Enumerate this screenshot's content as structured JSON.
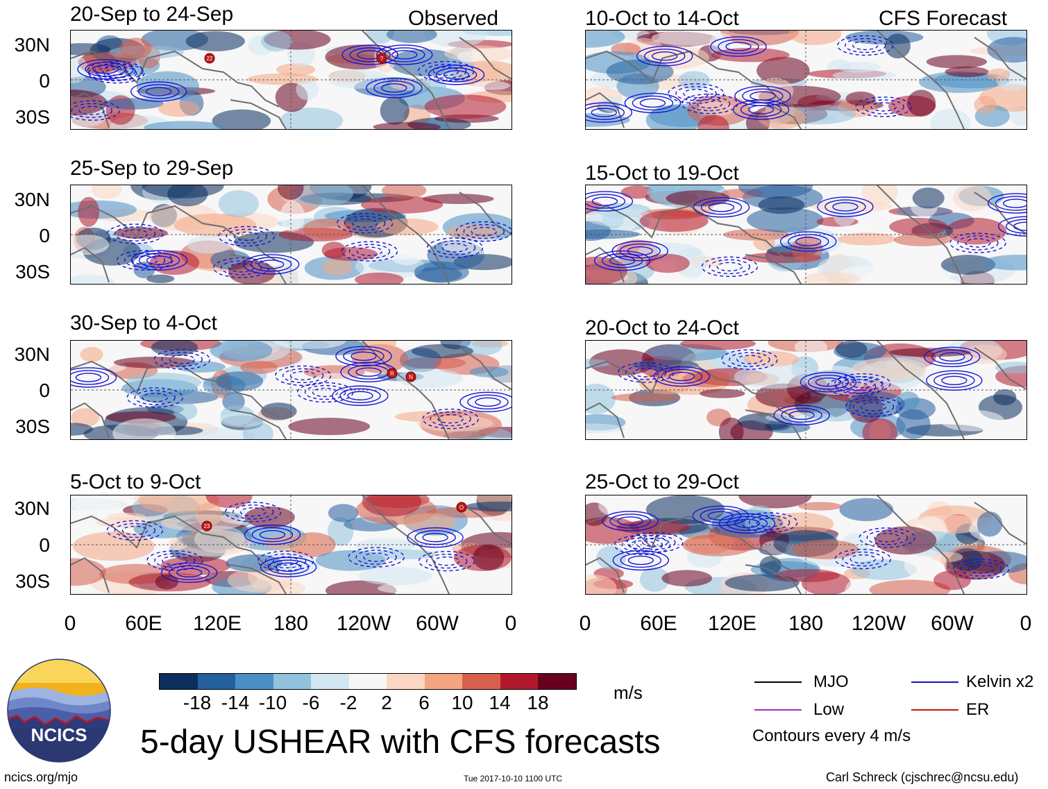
{
  "left_header": "Observed",
  "right_header": "CFS Forecast",
  "panels_left": [
    {
      "title": "20-Sep to 24-Sep"
    },
    {
      "title": "25-Sep to 29-Sep"
    },
    {
      "title": "30-Sep to 4-Oct"
    },
    {
      "title": "5-Oct to 9-Oct"
    }
  ],
  "panels_right": [
    {
      "title": "10-Oct to 14-Oct"
    },
    {
      "title": "15-Oct to 19-Oct"
    },
    {
      "title": "20-Oct to 24-Oct"
    },
    {
      "title": "25-Oct to 29-Oct"
    }
  ],
  "y_ticks": [
    "30N",
    "0",
    "30S"
  ],
  "x_ticks": [
    "0",
    "60E",
    "120E",
    "180",
    "120W",
    "60W",
    "0"
  ],
  "colorbar": {
    "colors": [
      "#0b2e5e",
      "#245f9e",
      "#4a8fc4",
      "#92c3de",
      "#d3e7f2",
      "#f7f7f7",
      "#fbd7c3",
      "#f4a582",
      "#d65f4d",
      "#b2182b",
      "#67001f"
    ],
    "labels": [
      "-18",
      "-14",
      "-10",
      "-6",
      "-2",
      "2",
      "6",
      "10",
      "14",
      "18"
    ],
    "units": "m/s"
  },
  "legend": {
    "mjo": "MJO",
    "kelvin": "Kelvin x2",
    "low": "Low",
    "er": "ER",
    "contours": "Contours every 4 m/s",
    "mjo_color": "#000000",
    "kelvin_color": "#1010d0",
    "low_color": "#9b30c8",
    "er_color": "#d01010"
  },
  "logo": {
    "text": "NCICS"
  },
  "main_title": "5-day USHEAR with CFS forecasts",
  "footer": {
    "url": "ncics.org/mjo",
    "timestamp": "Tue 2017-10-10 1100 UTC",
    "author": "Carl Schreck (cjschrec@ncsu.edu)"
  },
  "storms": [
    {
      "panel": "left-0",
      "label": "22"
    },
    {
      "panel": "left-0",
      "label": "?"
    },
    {
      "panel": "left-2",
      "label": "R"
    },
    {
      "panel": "left-2",
      "label": "N"
    },
    {
      "panel": "left-3",
      "label": "23"
    },
    {
      "panel": "left-3",
      "label": "O"
    }
  ]
}
